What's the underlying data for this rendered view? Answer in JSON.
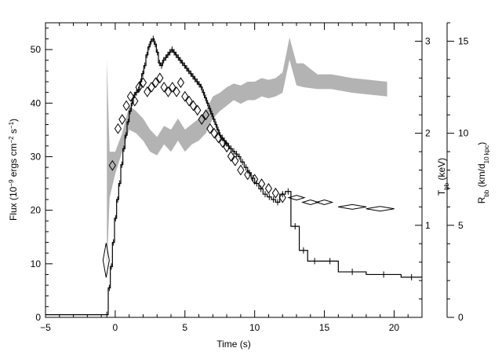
{
  "chart_data": {
    "type": "line",
    "x_axis": {
      "label": "Time (s)",
      "range": [
        -5,
        22
      ],
      "ticks": [
        -5,
        0,
        5,
        10,
        15,
        20
      ],
      "tick_labels": [
        "−5",
        "0",
        "5",
        "10",
        "15",
        "20"
      ]
    },
    "y_left": {
      "label_parts": {
        "a": "Flux (10",
        "a_sup": "−9",
        "b": " ergs cm",
        "b_sup": "−2",
        "c": " s",
        "c_sup": "−1",
        "d": ")"
      },
      "range": [
        0,
        55
      ],
      "ticks": [
        0,
        10,
        20,
        30,
        40,
        50
      ],
      "tick_labels": [
        "0",
        "10",
        "20",
        "30",
        "40",
        "50"
      ]
    },
    "y_temp": {
      "label_parts": {
        "a": "T",
        "a_sub": "bb",
        "b": " (keV)"
      },
      "range": [
        0,
        3.2
      ],
      "ticks": [
        1,
        2,
        3
      ],
      "tick_labels": [
        "1",
        "2",
        "3"
      ]
    },
    "y_radius": {
      "label_parts": {
        "a": "R",
        "a_sub": "bb",
        "b": " (km/d",
        "b_sub": "10 kpc",
        "c": ")"
      },
      "range": [
        0,
        16
      ],
      "ticks": [
        0,
        5,
        10,
        15
      ],
      "tick_labels": [
        "0",
        "5",
        "10",
        "15"
      ]
    },
    "series": [
      {
        "style": "histogram",
        "color": "#000000",
        "points": [
          [
            -5.0,
            0.5
          ],
          [
            -0.7,
            0.5
          ],
          [
            -0.5,
            5.5
          ],
          [
            -0.35,
            9.5
          ],
          [
            -0.2,
            14.0
          ],
          [
            -0.05,
            18.5
          ],
          [
            0.1,
            22.0
          ],
          [
            0.25,
            25.0
          ],
          [
            0.4,
            28.5
          ],
          [
            0.55,
            31.5
          ],
          [
            0.7,
            34.0
          ],
          [
            0.85,
            36.5
          ],
          [
            1.0,
            38.5
          ],
          [
            1.15,
            40.0
          ],
          [
            1.3,
            41.5
          ],
          [
            1.45,
            42.0
          ],
          [
            1.6,
            42.5
          ],
          [
            1.75,
            44.0
          ],
          [
            1.9,
            45.5
          ],
          [
            2.05,
            47.0
          ],
          [
            2.2,
            49.0
          ],
          [
            2.35,
            50.5
          ],
          [
            2.5,
            51.5
          ],
          [
            2.65,
            52.0
          ],
          [
            2.8,
            51.0
          ],
          [
            2.95,
            49.5
          ],
          [
            3.1,
            47.5
          ],
          [
            3.25,
            47.0
          ],
          [
            3.4,
            48.0
          ],
          [
            3.55,
            48.5
          ],
          [
            3.7,
            49.0
          ],
          [
            3.85,
            49.5
          ],
          [
            4.0,
            50.0
          ],
          [
            4.15,
            49.5
          ],
          [
            4.3,
            49.0
          ],
          [
            4.45,
            48.5
          ],
          [
            4.6,
            48.0
          ],
          [
            4.75,
            47.5
          ],
          [
            4.9,
            47.0
          ],
          [
            5.05,
            46.5
          ],
          [
            5.2,
            46.0
          ],
          [
            5.35,
            45.5
          ],
          [
            5.5,
            45.0
          ],
          [
            5.65,
            44.5
          ],
          [
            5.8,
            44.0
          ],
          [
            5.95,
            43.5
          ],
          [
            6.1,
            43.0
          ],
          [
            6.25,
            42.0
          ],
          [
            6.4,
            41.0
          ],
          [
            6.55,
            40.0
          ],
          [
            6.7,
            39.0
          ],
          [
            6.85,
            38.0
          ],
          [
            7.0,
            37.0
          ],
          [
            7.15,
            36.0
          ],
          [
            7.3,
            35.0
          ],
          [
            7.45,
            34.0
          ],
          [
            7.6,
            33.5
          ],
          [
            7.75,
            33.0
          ],
          [
            7.9,
            32.5
          ],
          [
            8.05,
            32.0
          ],
          [
            8.2,
            31.5
          ],
          [
            8.4,
            31.0
          ],
          [
            8.6,
            30.5
          ],
          [
            8.8,
            30.0
          ],
          [
            9.0,
            29.0
          ],
          [
            9.25,
            28.0
          ],
          [
            9.5,
            27.0
          ],
          [
            9.75,
            26.0
          ],
          [
            10.0,
            25.0
          ],
          [
            10.3,
            24.0
          ],
          [
            10.6,
            23.0
          ],
          [
            10.9,
            22.5
          ],
          [
            11.2,
            22.0
          ],
          [
            11.5,
            21.5
          ],
          [
            11.8,
            23.0
          ],
          [
            12.2,
            23.5
          ],
          [
            12.6,
            17.0
          ],
          [
            13.2,
            12.5
          ],
          [
            13.8,
            10.5
          ],
          [
            14.8,
            10.5
          ],
          [
            16.0,
            8.5
          ],
          [
            18.0,
            8.0
          ],
          [
            20.5,
            7.5
          ],
          [
            22.0,
            7.5
          ]
        ]
      },
      {
        "style": "diamonds",
        "color": "#000000",
        "axis": "temperature",
        "points": [
          [
            -0.65,
            0.62
          ],
          [
            -0.2,
            1.65
          ],
          [
            0.2,
            2.05
          ],
          [
            0.5,
            2.15
          ],
          [
            0.8,
            2.3
          ],
          [
            1.1,
            2.4
          ],
          [
            1.4,
            2.35
          ],
          [
            1.7,
            2.5
          ],
          [
            2.0,
            2.55
          ],
          [
            2.3,
            2.45
          ],
          [
            2.6,
            2.5
          ],
          [
            2.9,
            2.55
          ],
          [
            3.2,
            2.6
          ],
          [
            3.5,
            2.5
          ],
          [
            3.8,
            2.45
          ],
          [
            4.1,
            2.5
          ],
          [
            4.4,
            2.45
          ],
          [
            4.7,
            2.55
          ],
          [
            5.0,
            2.4
          ],
          [
            5.3,
            2.35
          ],
          [
            5.6,
            2.3
          ],
          [
            5.9,
            2.25
          ],
          [
            6.2,
            2.15
          ],
          [
            6.5,
            2.2
          ],
          [
            6.8,
            2.05
          ],
          [
            7.1,
            2.0
          ],
          [
            7.4,
            1.95
          ],
          [
            7.7,
            1.9
          ],
          [
            8.0,
            1.85
          ],
          [
            8.3,
            1.75
          ],
          [
            8.6,
            1.7
          ],
          [
            9.0,
            1.6
          ],
          [
            9.5,
            1.55
          ],
          [
            10.0,
            1.5
          ],
          [
            10.5,
            1.45
          ],
          [
            11.0,
            1.4
          ],
          [
            11.5,
            1.35
          ],
          [
            12.0,
            1.3
          ],
          [
            13.0,
            1.3
          ],
          [
            14.0,
            1.25
          ],
          [
            15.0,
            1.25
          ],
          [
            17.0,
            1.2
          ],
          [
            19.0,
            1.18
          ]
        ]
      },
      {
        "style": "band",
        "color": "#b3b3b3",
        "axis": "radius",
        "points": [
          [
            -0.6,
            2.5,
            14.0
          ],
          [
            -0.4,
            6.5,
            9.0
          ],
          [
            0.0,
            7.8,
            9.0
          ],
          [
            0.5,
            9.0,
            10.0
          ],
          [
            1.0,
            10.2,
            11.5
          ],
          [
            1.5,
            10.0,
            11.2
          ],
          [
            2.0,
            9.6,
            10.8
          ],
          [
            2.5,
            9.0,
            10.2
          ],
          [
            3.0,
            8.8,
            9.8
          ],
          [
            3.5,
            9.4,
            10.4
          ],
          [
            4.0,
            9.0,
            10.2
          ],
          [
            4.5,
            9.6,
            10.8
          ],
          [
            5.0,
            9.0,
            10.2
          ],
          [
            5.5,
            9.4,
            10.5
          ],
          [
            6.0,
            9.6,
            10.8
          ],
          [
            6.5,
            10.0,
            11.2
          ],
          [
            7.0,
            10.8,
            12.0
          ],
          [
            7.5,
            11.2,
            12.2
          ],
          [
            8.0,
            11.5,
            12.5
          ],
          [
            8.5,
            11.8,
            12.7
          ],
          [
            9.0,
            11.6,
            12.6
          ],
          [
            9.5,
            11.8,
            12.8
          ],
          [
            10.0,
            11.8,
            12.8
          ],
          [
            10.5,
            12.0,
            13.0
          ],
          [
            11.0,
            11.9,
            12.9
          ],
          [
            11.5,
            12.0,
            13.0
          ],
          [
            12.0,
            12.2,
            13.3
          ],
          [
            12.5,
            14.0,
            15.2
          ],
          [
            13.0,
            12.6,
            13.8
          ],
          [
            13.5,
            12.5,
            13.8
          ],
          [
            14.5,
            12.4,
            13.2
          ],
          [
            15.5,
            12.4,
            13.2
          ],
          [
            17.0,
            12.2,
            13.0
          ],
          [
            19.5,
            12.0,
            12.8
          ]
        ]
      }
    ]
  }
}
